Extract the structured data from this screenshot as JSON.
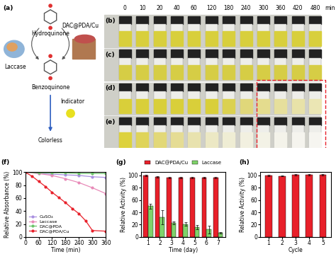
{
  "diagram": {
    "label": "(a)",
    "substrate": "Hydroquinone",
    "enzyme": "Laccase",
    "nanozyme": "DAC@PDA/Cu",
    "product": "Benzoquinone",
    "indicator": "Indicator",
    "result": "Colorless"
  },
  "photos": {
    "time_labels": [
      "0",
      "10",
      "20",
      "40",
      "60",
      "120",
      "180",
      "240",
      "300",
      "360",
      "420",
      "480"
    ],
    "time_unit": "min",
    "rows": [
      {
        "label": "(b)",
        "colors": [
          "#d8cf3c",
          "#d8cf3c",
          "#d8cf3c",
          "#d8cf3c",
          "#d8cf3c",
          "#d8cf3c",
          "#d8cf3c",
          "#d8cf3c",
          "#d8cf3c",
          "#d8cf3c",
          "#d8cf3c",
          "#d8cf3c"
        ]
      },
      {
        "label": "(c)",
        "colors": [
          "#d6cd45",
          "#d6cd45",
          "#d6cd45",
          "#d6cd45",
          "#d6cd45",
          "#d6cd45",
          "#d6cd45",
          "#d6cd45",
          "#d6cd45",
          "#d6cd45",
          "#d6cd45",
          "#d6cd45"
        ]
      },
      {
        "label": "(d)",
        "colors": [
          "#d9cf3a",
          "#d9cf3a",
          "#d9cf3a",
          "#d9cf3a",
          "#d9cf3a",
          "#d9cf3a",
          "#dbd150",
          "#e0d77a",
          "#e4dc8e",
          "#e6df9c",
          "#e8e2a8",
          "#ebe6b4"
        ]
      },
      {
        "label": "(e)",
        "colors": [
          "#ddd23d",
          "#dfd45a",
          "#e2d878",
          "#e5dc94",
          "#e8e2ae",
          "#ece8c4",
          "#efedd4",
          "#f2f0e0",
          "#f3f2e6",
          "#f4f3ea",
          "#f5f4ee",
          "#f6f5f0"
        ]
      }
    ]
  },
  "chart_data": [
    {
      "type": "line",
      "label": "(f)",
      "x_label": "Time (min)",
      "y_label": "Relative Absorbance (%)",
      "xlim": [
        0,
        360
      ],
      "xticks": [
        0,
        60,
        120,
        180,
        240,
        300,
        360
      ],
      "ylim": [
        0,
        100
      ],
      "yticks": [
        0,
        20,
        40,
        60,
        80,
        100
      ],
      "legend": "lower left",
      "series": [
        {
          "name": "CuSO₄",
          "color": "#a98fe0",
          "marker": "o",
          "x": [
            0,
            60,
            120,
            180,
            240,
            300,
            360
          ],
          "values": [
            100,
            98,
            97,
            96,
            95,
            93,
            92
          ]
        },
        {
          "name": "Laccase",
          "color": "#e88ab8",
          "marker": "o",
          "x": [
            0,
            60,
            120,
            180,
            240,
            300,
            360
          ],
          "values": [
            100,
            98,
            95,
            90,
            84,
            76,
            67
          ]
        },
        {
          "name": "DAC@PDA",
          "color": "#6cc36a",
          "marker": "o",
          "x": [
            0,
            60,
            120,
            180,
            240,
            300,
            360
          ],
          "values": [
            100,
            99,
            99,
            99,
            98,
            98,
            98
          ]
        },
        {
          "name": "DAC@PDA/Cu",
          "color": "#e8202a",
          "marker": "o",
          "x": [
            0,
            30,
            60,
            90,
            120,
            150,
            180,
            210,
            240,
            270,
            300,
            360
          ],
          "values": [
            100,
            94,
            86,
            78,
            69,
            61,
            53,
            44,
            36,
            25,
            10,
            9
          ]
        }
      ]
    },
    {
      "type": "bar",
      "label": "(g)",
      "x_label": "Time (day)",
      "y_label": "Relative Activity (%)",
      "categories": [
        "1",
        "2",
        "3",
        "4",
        "5",
        "6",
        "7"
      ],
      "ylim": [
        0,
        105
      ],
      "yticks": [
        0,
        20,
        40,
        60,
        80,
        100
      ],
      "legend": "upper center",
      "series": [
        {
          "name": "DAC@PDA/Cu",
          "color": "#e8202a",
          "values": [
            100,
            97,
            96,
            96,
            96,
            96,
            96
          ],
          "errors": [
            1,
            1,
            1,
            1,
            1,
            1,
            1
          ]
        },
        {
          "name": "Laccase",
          "color": "#7fd36a",
          "values": [
            50,
            32,
            23,
            21,
            16,
            12,
            7
          ],
          "errors": [
            4,
            12,
            2,
            3,
            3,
            6,
            1
          ]
        }
      ]
    },
    {
      "type": "bar",
      "label": "(h)",
      "x_label": "Cycle",
      "y_label": "Relative Activity (%)",
      "categories": [
        "1",
        "2",
        "3",
        "4",
        "5"
      ],
      "ylim": [
        0,
        105
      ],
      "yticks": [
        0,
        20,
        40,
        60,
        80,
        100
      ],
      "color": "#e8202a",
      "values": [
        100,
        99,
        101,
        101,
        101
      ],
      "errors": [
        1,
        1,
        1,
        1,
        1
      ]
    }
  ]
}
